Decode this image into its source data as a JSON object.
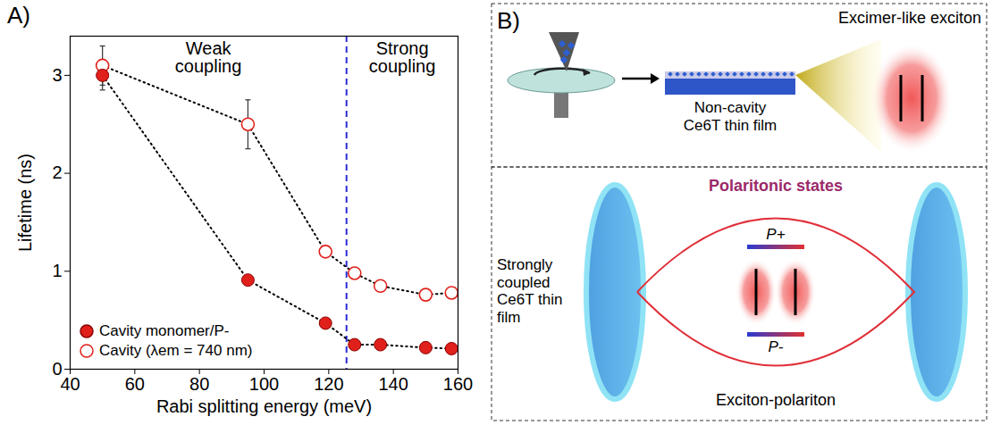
{
  "chart_data": {
    "type": "scatter",
    "panel": "A)",
    "x_label": "Rabi splitting energy (meV)",
    "y_label": "Lifetime (ns)",
    "xlim": [
      40,
      160
    ],
    "xticks": [
      40,
      60,
      80,
      100,
      120,
      140,
      160
    ],
    "ylim": [
      0,
      3.4
    ],
    "yticks": [
      0,
      1,
      2,
      3
    ],
    "legend": "lower left",
    "line_style": "dotted",
    "annotations": [
      "Weak coupling",
      "Strong coupling"
    ],
    "threshold": {
      "x": 125.5,
      "color": "#2b2bd6",
      "line_style": "dashed"
    },
    "series": [
      {
        "name": "Cavity (λem = 740 nm)",
        "color": "#e0201b",
        "marker": "open circle",
        "x": [
          50,
          95,
          119,
          128,
          136,
          150,
          158
        ],
        "values": [
          3.1,
          2.5,
          1.2,
          0.98,
          0.85,
          0.76,
          0.78
        ],
        "errors": [
          0.2,
          0.25,
          0.05,
          0.03,
          0.03,
          0.03,
          0.03
        ]
      },
      {
        "name": "Cavity monomer/P-",
        "color": "#e0201b",
        "marker": "filled circle",
        "x": [
          50,
          95,
          119,
          128,
          136,
          150,
          158
        ],
        "values": [
          3.0,
          0.91,
          0.47,
          0.25,
          0.25,
          0.22,
          0.21
        ],
        "errors": [
          0.15,
          0.02,
          0.02,
          0.02,
          0.02,
          0.02,
          0.02
        ]
      }
    ]
  },
  "diagram": {
    "panel": "B)",
    "top": {
      "caption": "Non-cavity Ce6T thin film",
      "exciton": "Excimer-like exciton"
    },
    "bottom": {
      "side_label": "Strongly coupled Ce6T thin film",
      "title": "Polaritonic states",
      "upper": "P+",
      "lower": "P-",
      "caption": "Exciton-polariton"
    }
  }
}
